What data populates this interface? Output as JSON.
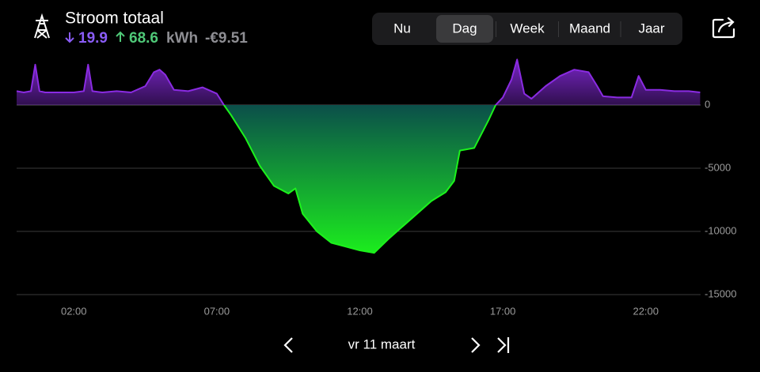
{
  "header": {
    "title": "Stroom totaal",
    "import": "19.9",
    "export": "68.6",
    "unit": "kWh",
    "cost": "-€9.51"
  },
  "tabs": [
    "Nu",
    "Dag",
    "Week",
    "Maand",
    "Jaar"
  ],
  "active_tab": 1,
  "chart_data": {
    "type": "area",
    "x": [
      0,
      0.25,
      0.5,
      0.65,
      0.8,
      1,
      1.5,
      2,
      2.35,
      2.5,
      2.65,
      3,
      3.5,
      4,
      4.5,
      4.8,
      5,
      5.2,
      5.5,
      6,
      6.5,
      7,
      7.25,
      7.5,
      8,
      8.5,
      9,
      9.5,
      9.75,
      10,
      10.5,
      11,
      11.5,
      12,
      12.5,
      13,
      13.5,
      14,
      14.5,
      15,
      15.3,
      15.5,
      16,
      16.5,
      16.75,
      17,
      17.3,
      17.5,
      17.75,
      18,
      18.5,
      19,
      19.5,
      20,
      20.3,
      20.5,
      21,
      21.5,
      21.75,
      22,
      22.5,
      23,
      23.5,
      23.9
    ],
    "values": [
      1100,
      1000,
      1100,
      3200,
      1100,
      1000,
      1000,
      1000,
      1100,
      3200,
      1100,
      1000,
      1100,
      1000,
      1500,
      2600,
      2800,
      2400,
      1200,
      1100,
      1400,
      900,
      0,
      -800,
      -2600,
      -4800,
      -6400,
      -7000,
      -6600,
      -8600,
      -10000,
      -10900,
      -11200,
      -11500,
      -11700,
      -10600,
      -9600,
      -8600,
      -7600,
      -6900,
      -6000,
      -3600,
      -3400,
      -1200,
      0,
      600,
      2000,
      3600,
      900,
      500,
      1500,
      2300,
      2800,
      2600,
      1500,
      700,
      600,
      600,
      2300,
      1200,
      1200,
      1100,
      1100,
      1000
    ],
    "positive_color": "#8a2be2",
    "negative_color": "#1cf21c",
    "xlim": [
      0,
      24
    ],
    "xticks": [
      {
        "value": 2,
        "label": "02:00"
      },
      {
        "value": 7,
        "label": "07:00"
      },
      {
        "value": 12,
        "label": "12:00"
      },
      {
        "value": 17,
        "label": "17:00"
      },
      {
        "value": 22,
        "label": "22:00"
      }
    ],
    "ylim": [
      -15000,
      4500
    ],
    "yticks": [
      0,
      -5000,
      -10000,
      -15000
    ],
    "grid": true
  },
  "footer": {
    "date": "vr 11 maart"
  }
}
